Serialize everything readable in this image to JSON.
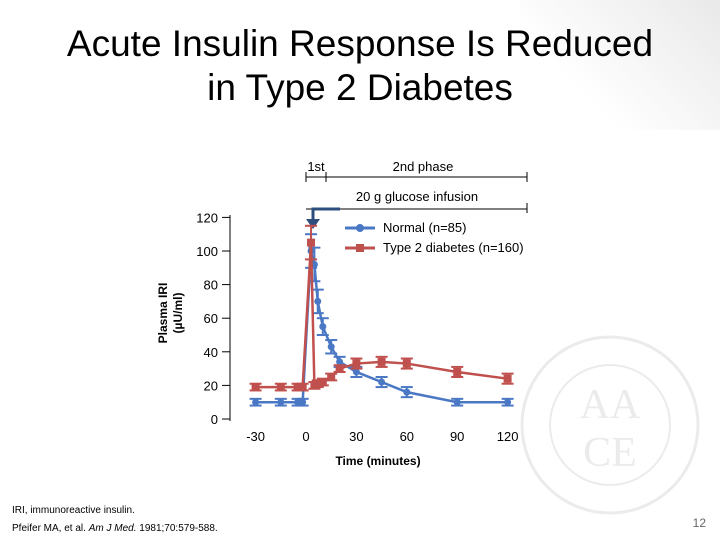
{
  "slide": {
    "title_line1": "Acute Insulin Response Is Reduced",
    "title_line2": "in Type 2 Diabetes",
    "footnote1": "IRI, immunoreactive insulin.",
    "footnote2_prefix": "Pfeifer MA, et al. ",
    "footnote2_journal": "Am J Med.",
    "footnote2_suffix": " 1981;70:579-588.",
    "page_number": "12",
    "watermark": "AACE"
  },
  "chart_data": {
    "type": "line",
    "xlabel": "Time (minutes)",
    "ylabel": [
      "Plasma IRI",
      "(µU/ml)"
    ],
    "xlim": [
      -40,
      130
    ],
    "ylim": [
      0,
      120
    ],
    "x_ticks": [
      -30,
      0,
      30,
      60,
      90,
      120
    ],
    "y_ticks": [
      0,
      20,
      40,
      60,
      80,
      100,
      120
    ],
    "annotations": {
      "phase1": "1st",
      "phase2": "2nd phase",
      "infusion": "20 g glucose infusion"
    },
    "series": [
      {
        "name": "Normal (n=85)",
        "color": "#4a78c4",
        "marker": "circle",
        "points": [
          {
            "x": -30,
            "y": 10,
            "err": 2
          },
          {
            "x": -15,
            "y": 10,
            "err": 2
          },
          {
            "x": -5,
            "y": 10,
            "err": 2
          },
          {
            "x": -2,
            "y": 10,
            "err": 2
          },
          {
            "x": 3,
            "y": 100,
            "err": 10
          },
          {
            "x": 5,
            "y": 92,
            "err": 10
          },
          {
            "x": 7,
            "y": 70,
            "err": 7
          },
          {
            "x": 10,
            "y": 55,
            "err": 5
          },
          {
            "x": 15,
            "y": 43,
            "err": 4
          },
          {
            "x": 20,
            "y": 34,
            "err": 3
          },
          {
            "x": 30,
            "y": 28,
            "err": 3
          },
          {
            "x": 45,
            "y": 22,
            "err": 3
          },
          {
            "x": 60,
            "y": 16,
            "err": 3
          },
          {
            "x": 90,
            "y": 10,
            "err": 2
          },
          {
            "x": 120,
            "y": 10,
            "err": 2
          }
        ]
      },
      {
        "name": "Type 2 diabetes (n=160)",
        "color": "#c0504d",
        "marker": "square",
        "points": [
          {
            "x": -30,
            "y": 19,
            "err": 2
          },
          {
            "x": -15,
            "y": 19,
            "err": 2
          },
          {
            "x": -5,
            "y": 19,
            "err": 2
          },
          {
            "x": -2,
            "y": 19,
            "err": 2
          },
          {
            "x": 3,
            "y": 105,
            "err": 10
          },
          {
            "x": 5,
            "y": 20,
            "err": 2
          },
          {
            "x": 7,
            "y": 21,
            "err": 2
          },
          {
            "x": 10,
            "y": 22,
            "err": 2
          },
          {
            "x": 15,
            "y": 25,
            "err": 2
          },
          {
            "x": 20,
            "y": 30,
            "err": 2
          },
          {
            "x": 30,
            "y": 33,
            "err": 3
          },
          {
            "x": 45,
            "y": 34,
            "err": 3
          },
          {
            "x": 60,
            "y": 33,
            "err": 3
          },
          {
            "x": 90,
            "y": 28,
            "err": 3
          },
          {
            "x": 120,
            "y": 24,
            "err": 3
          }
        ]
      }
    ]
  }
}
